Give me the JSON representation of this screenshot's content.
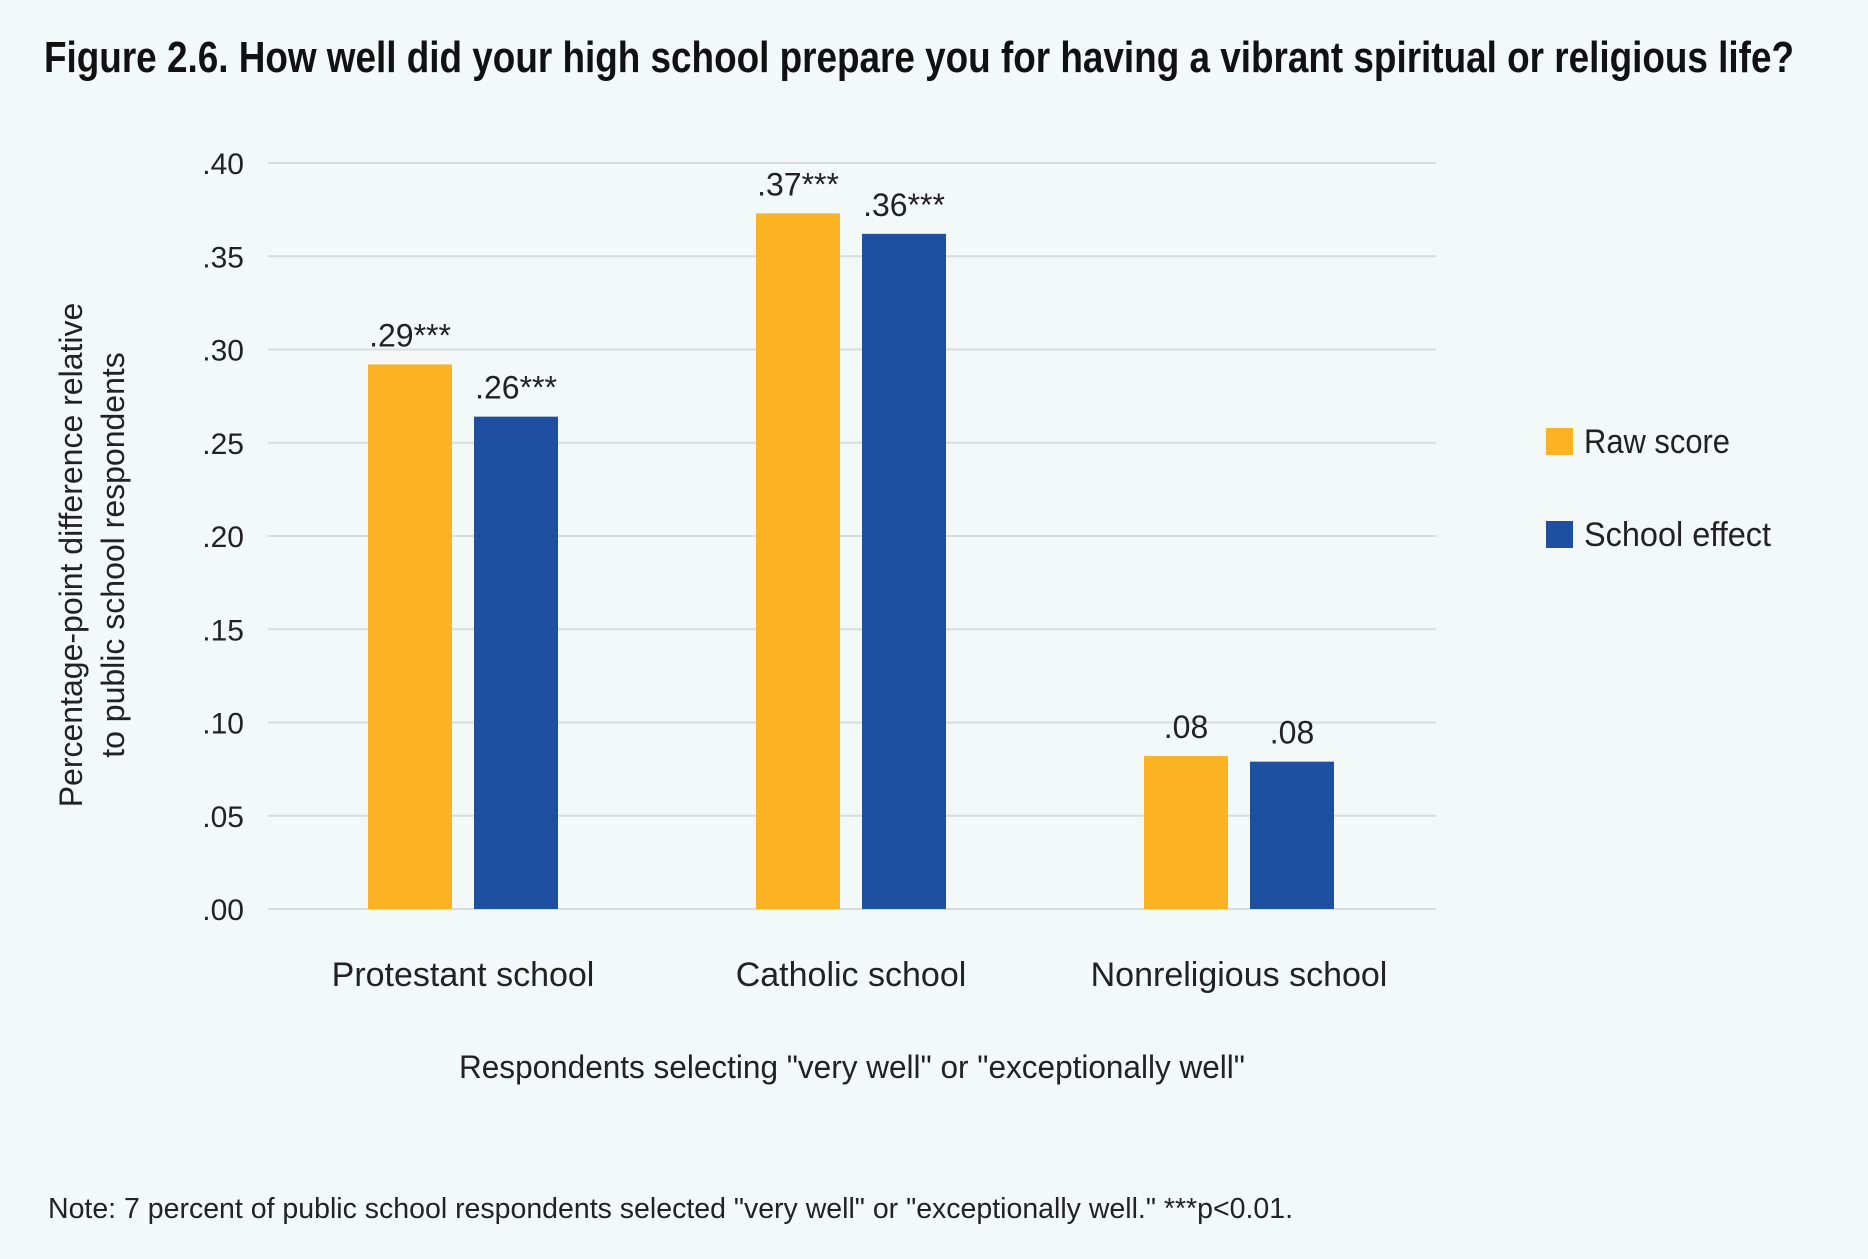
{
  "chart_data": {
    "type": "bar",
    "title": "Figure 2.6. How well did your high school prepare you for having a vibrant spiritual or religious life?",
    "categories": [
      "Protestant school",
      "Catholic school",
      "Nonreligious school"
    ],
    "series": [
      {
        "name": "Raw score",
        "color": "#FBB324",
        "values": [
          0.292,
          0.373,
          0.082
        ],
        "labels": [
          ".29***",
          ".37***",
          ".08"
        ]
      },
      {
        "name": "School effect",
        "color": "#1E4FA0",
        "values": [
          0.264,
          0.362,
          0.079
        ],
        "labels": [
          ".26***",
          ".36***",
          ".08"
        ]
      }
    ],
    "xlabel": "Respondents selecting \"very well\" or \"exceptionally well\"",
    "ylabel": [
      "Percentage-point difference relative",
      "to public school respondents"
    ],
    "ylim": [
      0,
      0.4
    ],
    "yticks": [
      ".00",
      ".05",
      ".10",
      ".15",
      ".20",
      ".25",
      ".30",
      ".35",
      ".40"
    ],
    "grid": true,
    "legend_position": "right",
    "note": "Note: 7 percent of public school respondents selected \"very well\" or \"exceptionally well.\" ***p<0.01."
  }
}
